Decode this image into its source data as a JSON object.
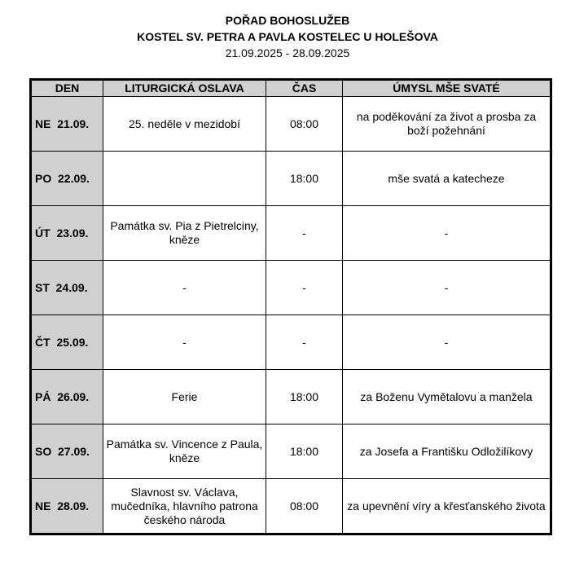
{
  "header": {
    "title": "POŘAD BOHOSLUŽEB",
    "subtitle": "KOSTEL SV. PETRA A PAVLA KOSTELEC U HOLEŠOVA",
    "date_range": "21.09.2025 - 28.09.2025"
  },
  "table": {
    "columns": [
      "DEN",
      "LITURGICKÁ OSLAVA",
      "ČAS",
      "ÚMYSL MŠE SVATÉ"
    ],
    "rows": [
      {
        "day": "NE  21.09.",
        "celebration": "25. neděle v mezidobí",
        "time": "08:00",
        "intention": "na poděkování za život a prosba za boží požehnání"
      },
      {
        "day": "PO  22.09.",
        "celebration": "",
        "time": "18:00",
        "intention": "mše svatá a katecheze"
      },
      {
        "day": "ÚT  23.09.",
        "celebration": "Památka sv. Pia z Pietrelciny, kněze",
        "time": "-",
        "intention": "-"
      },
      {
        "day": "ST  24.09.",
        "celebration": "-",
        "time": "-",
        "intention": "-"
      },
      {
        "day": "ČT  25.09.",
        "celebration": "-",
        "time": "-",
        "intention": "-"
      },
      {
        "day": "PÁ  26.09.",
        "celebration": "Ferie",
        "time": "18:00",
        "intention": "za Boženu Vymětalovu a manžela"
      },
      {
        "day": "SO  27.09.",
        "celebration": "Památka sv. Vincence z Paula, kněze",
        "time": "18:00",
        "intention": "za Josefa a Františku Odložilíkovy"
      },
      {
        "day": "NE  28.09.",
        "celebration": "Slavnost sv. Václava, mučedníka, hlavního patrona českého národa",
        "time": "08:00",
        "intention": "za upevnění víry a křesťanského života"
      }
    ]
  }
}
